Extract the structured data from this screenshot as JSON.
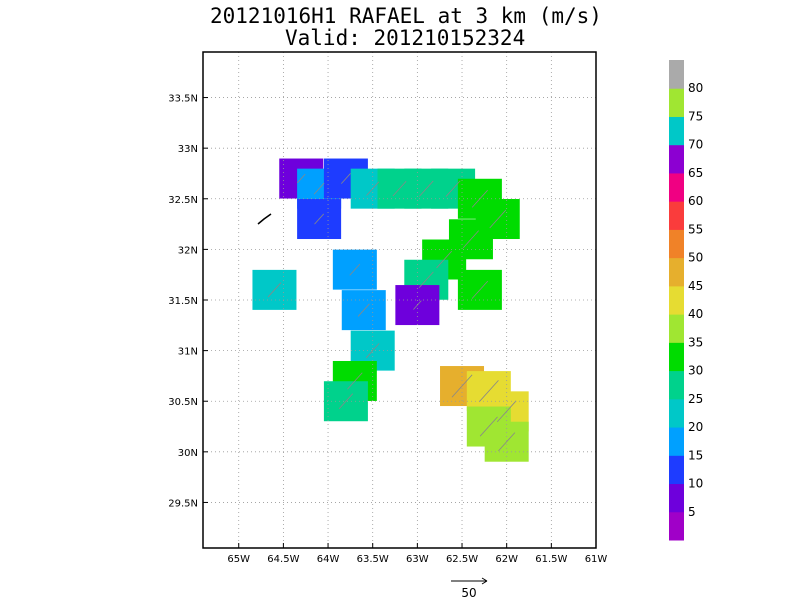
{
  "chart_data": {
    "type": "heatmap",
    "title": "20121016H1 RAFAEL at 3 km (m/s)",
    "subtitle": "Valid: 201210152324",
    "x_ticks": [
      "65W",
      "64.5W",
      "64W",
      "63.5W",
      "63W",
      "62.5W",
      "62W",
      "61.5W",
      "61W"
    ],
    "x_tick_values": [
      -65,
      -64.5,
      -64,
      -63.5,
      -63,
      -62.5,
      -62,
      -61.5,
      -61
    ],
    "y_ticks": [
      "29.5N",
      "30N",
      "30.5N",
      "31N",
      "31.5N",
      "32N",
      "32.5N",
      "33N",
      "33.5N"
    ],
    "y_tick_values": [
      29.5,
      30,
      30.5,
      31,
      31.5,
      32,
      32.5,
      33,
      33.5
    ],
    "xlim": [
      -65.4,
      -61.0
    ],
    "ylim": [
      29.05,
      33.95
    ],
    "grid": true,
    "reference_vector": {
      "label": "50",
      "magnitude": 50
    },
    "colorbar": {
      "labels": [
        "5",
        "10",
        "15",
        "20",
        "25",
        "30",
        "35",
        "40",
        "45",
        "50",
        "55",
        "60",
        "65",
        "70",
        "75",
        "80"
      ],
      "bins": [
        0,
        5,
        10,
        15,
        20,
        25,
        30,
        35,
        40,
        45,
        50,
        55,
        60,
        65,
        70,
        75,
        80,
        85
      ],
      "colors": [
        "#a000c8",
        "#6e00dc",
        "#1e3cff",
        "#00a0ff",
        "#00c8c8",
        "#00d28c",
        "#00dc00",
        "#a0e632",
        "#e6dc32",
        "#e6af2d",
        "#f08228",
        "#fa3c3c",
        "#f00082",
        "#8c00d2",
        "#00c8c8",
        "#a0e632",
        "#aaaaaa"
      ]
    },
    "wind_field": [
      {
        "lon": -64.3,
        "lat": 32.7,
        "speed": 8
      },
      {
        "lon": -64.1,
        "lat": 32.6,
        "speed": 15
      },
      {
        "lon": -63.8,
        "lat": 32.7,
        "speed": 12
      },
      {
        "lon": -63.5,
        "lat": 32.6,
        "speed": 22
      },
      {
        "lon": -63.2,
        "lat": 32.6,
        "speed": 25
      },
      {
        "lon": -62.9,
        "lat": 32.6,
        "speed": 27
      },
      {
        "lon": -62.6,
        "lat": 32.6,
        "speed": 28
      },
      {
        "lon": -62.3,
        "lat": 32.5,
        "speed": 32
      },
      {
        "lon": -62.1,
        "lat": 32.3,
        "speed": 34
      },
      {
        "lon": -62.4,
        "lat": 32.1,
        "speed": 32
      },
      {
        "lon": -62.7,
        "lat": 31.9,
        "speed": 31
      },
      {
        "lon": -62.9,
        "lat": 31.7,
        "speed": 28
      },
      {
        "lon": -63.0,
        "lat": 31.45,
        "speed": 8
      },
      {
        "lon": -62.3,
        "lat": 31.6,
        "speed": 33
      },
      {
        "lon": -64.1,
        "lat": 32.3,
        "speed": 12
      },
      {
        "lon": -63.7,
        "lat": 31.8,
        "speed": 15
      },
      {
        "lon": -63.6,
        "lat": 31.4,
        "speed": 19
      },
      {
        "lon": -63.5,
        "lat": 31.0,
        "speed": 24
      },
      {
        "lon": -63.7,
        "lat": 30.7,
        "speed": 30
      },
      {
        "lon": -63.8,
        "lat": 30.5,
        "speed": 26
      },
      {
        "lon": -64.6,
        "lat": 31.6,
        "speed": 24
      },
      {
        "lon": -62.5,
        "lat": 30.65,
        "speed": 47
      },
      {
        "lon": -62.2,
        "lat": 30.6,
        "speed": 44
      },
      {
        "lon": -62.0,
        "lat": 30.4,
        "speed": 43
      },
      {
        "lon": -62.2,
        "lat": 30.25,
        "speed": 38
      },
      {
        "lon": -62.0,
        "lat": 30.1,
        "speed": 35
      }
    ]
  }
}
